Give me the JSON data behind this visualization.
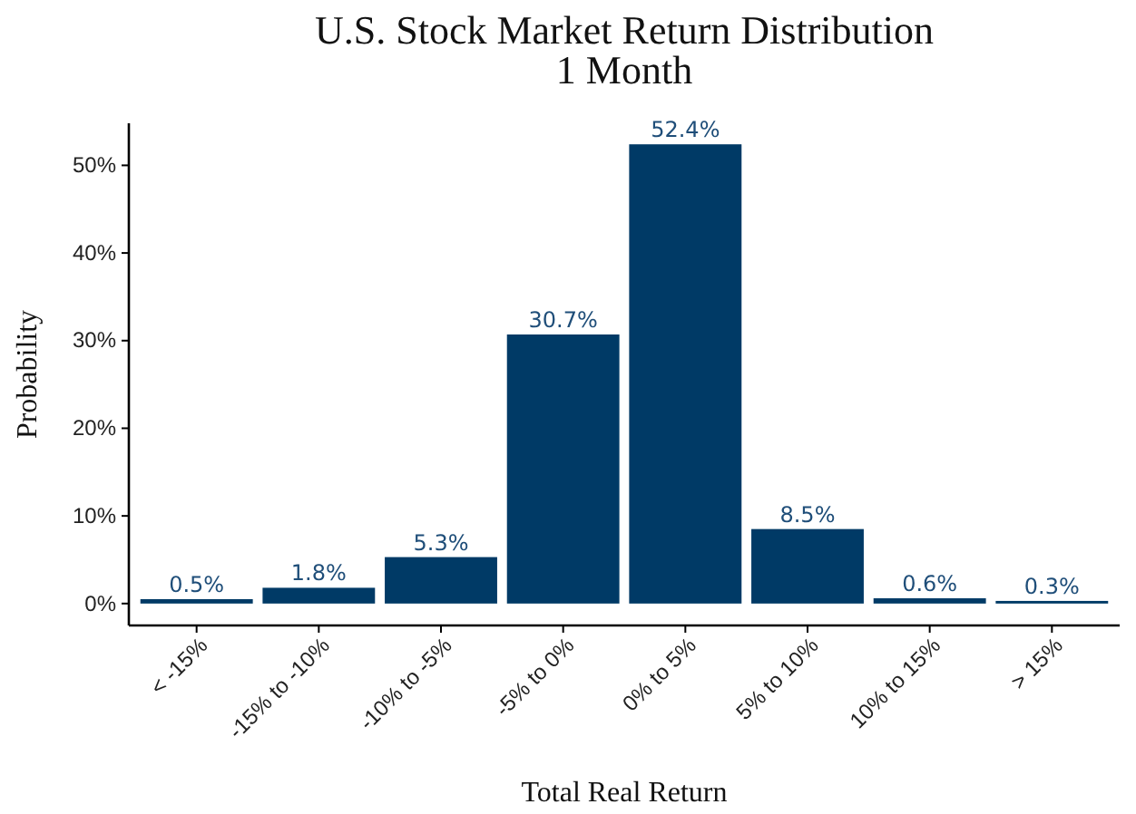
{
  "chart_data": {
    "type": "bar",
    "title": "U.S. Stock Market Return Distribution\n1 Month",
    "xlabel": "Total Real Return",
    "ylabel": "Probability",
    "categories": [
      "< -15%",
      "-15% to -10%",
      "-10% to -5%",
      "-5% to 0%",
      "0% to 5%",
      "5% to 10%",
      "10% to 15%",
      "> 15%"
    ],
    "values": [
      0.5,
      1.8,
      5.3,
      30.7,
      52.4,
      8.5,
      0.6,
      0.3
    ],
    "value_labels": [
      "0.5%",
      "1.8%",
      "5.3%",
      "30.7%",
      "52.4%",
      "8.5%",
      "0.6%",
      "0.3%"
    ],
    "color": "#003a66",
    "ylim": [
      -2.5,
      54.8
    ],
    "yticks": [
      {
        "value": 0,
        "label": "0%"
      },
      {
        "value": 10,
        "label": "10%"
      },
      {
        "value": 20,
        "label": "20%"
      },
      {
        "value": 30,
        "label": "30%"
      },
      {
        "value": 40,
        "label": "40%"
      },
      {
        "value": 50,
        "label": "50%"
      }
    ],
    "grid": false
  }
}
